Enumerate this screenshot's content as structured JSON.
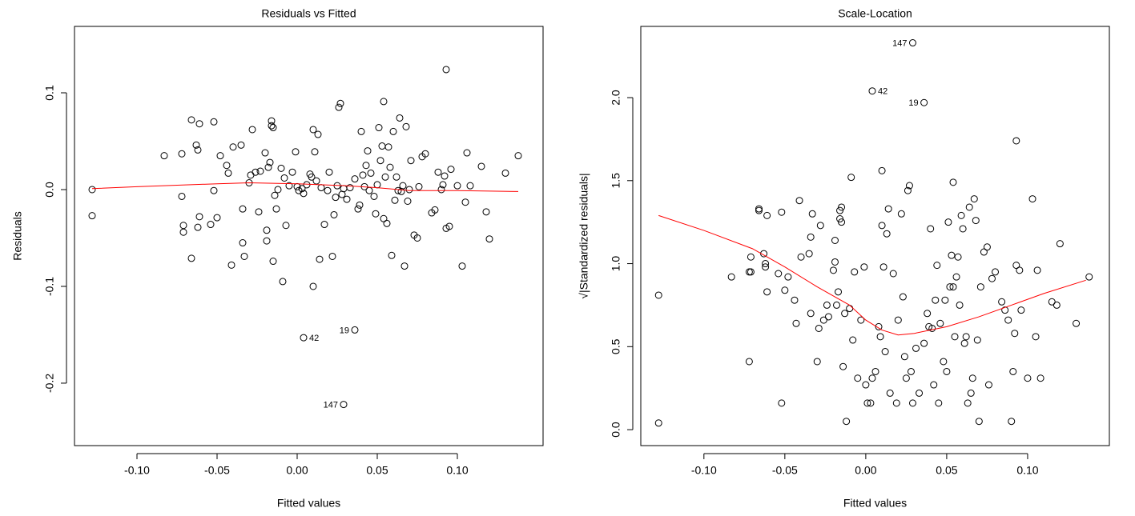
{
  "chart_data": [
    {
      "type": "scatter",
      "title": "Residuals vs Fitted",
      "x_label": "Fitted values",
      "y_label": "Residuals",
      "color": "#000000",
      "xlim": [
        -0.139,
        0.1535
      ],
      "ylim": [
        -0.2645,
        0.1686
      ],
      "xticks": [
        {
          "value": -0.1,
          "label": "-0.10"
        },
        -0.05,
        {
          "value": 0,
          "label": "0.00"
        },
        0.05,
        {
          "value": 0.1,
          "label": "0.10"
        }
      ],
      "yticks": [
        -0.2,
        -0.1,
        {
          "value": 0,
          "label": "0.0"
        },
        0.1
      ],
      "x": [
        -0.128,
        -0.128,
        -0.083,
        -0.072,
        -0.072,
        -0.071,
        -0.071,
        -0.066,
        -0.066,
        -0.063,
        -0.062,
        -0.061,
        -0.061,
        -0.062,
        -0.054,
        -0.052,
        -0.052,
        -0.05,
        -0.048,
        -0.044,
        -0.043,
        -0.041,
        -0.04,
        -0.035,
        -0.034,
        -0.034,
        -0.033,
        -0.03,
        -0.029,
        -0.028,
        -0.026,
        -0.024,
        -0.023,
        -0.02,
        -0.019,
        -0.019,
        -0.018,
        -0.017,
        -0.016,
        -0.016,
        -0.015,
        -0.015,
        -0.014,
        -0.013,
        -0.012,
        -0.01,
        -0.009,
        -0.008,
        -0.007,
        -0.005,
        -0.003,
        -0.001,
        0.0,
        0.001,
        0.003,
        0.004,
        0.006,
        0.008,
        0.009,
        0.01,
        0.01,
        0.011,
        0.012,
        0.013,
        0.014,
        0.015,
        0.017,
        0.019,
        0.02,
        0.022,
        0.023,
        0.024,
        0.025,
        0.026,
        0.027,
        0.028,
        0.029,
        0.031,
        0.033,
        0.004,
        0.036,
        0.029,
        0.036,
        0.038,
        0.039,
        0.04,
        0.041,
        0.042,
        0.043,
        0.044,
        0.045,
        0.046,
        0.048,
        0.049,
        0.05,
        0.051,
        0.052,
        0.053,
        0.054,
        0.054,
        0.055,
        0.056,
        0.057,
        0.058,
        0.059,
        0.06,
        0.061,
        0.062,
        0.063,
        0.064,
        0.065,
        0.066,
        0.067,
        0.068,
        0.069,
        0.07,
        0.071,
        0.073,
        0.075,
        0.076,
        0.078,
        0.08,
        0.084,
        0.086,
        0.088,
        0.09,
        0.091,
        0.092,
        0.093,
        0.093,
        0.095,
        0.096,
        0.1,
        0.103,
        0.105,
        0.106,
        0.108,
        0.115,
        0.118,
        0.12,
        0.13,
        0.138
      ],
      "values": [
        0.0,
        -0.027,
        0.035,
        0.037,
        -0.007,
        -0.037,
        -0.044,
        0.072,
        -0.071,
        0.046,
        0.041,
        0.068,
        -0.028,
        -0.039,
        -0.036,
        0.07,
        -0.001,
        -0.029,
        0.035,
        0.025,
        0.017,
        -0.078,
        0.044,
        0.046,
        -0.02,
        -0.055,
        -0.069,
        0.007,
        0.015,
        0.062,
        0.018,
        -0.023,
        0.019,
        0.038,
        -0.042,
        -0.053,
        0.023,
        0.028,
        0.071,
        0.066,
        -0.074,
        0.064,
        -0.006,
        -0.02,
        0.0,
        0.022,
        -0.095,
        0.012,
        -0.037,
        0.004,
        0.018,
        0.039,
        0.003,
        -0.001,
        0.001,
        -0.004,
        0.005,
        0.016,
        0.013,
        0.062,
        -0.1,
        0.039,
        0.009,
        0.057,
        -0.072,
        0.002,
        -0.036,
        -0.001,
        0.018,
        -0.069,
        -0.026,
        -0.008,
        0.004,
        0.085,
        0.089,
        -0.005,
        0.001,
        -0.01,
        0.002,
        -0.153,
        -0.145,
        -0.222,
        0.011,
        -0.02,
        -0.016,
        0.06,
        0.015,
        0.003,
        0.025,
        0.04,
        -0.001,
        0.017,
        -0.007,
        -0.025,
        0.005,
        0.064,
        0.03,
        0.045,
        0.091,
        -0.03,
        0.013,
        -0.035,
        0.044,
        0.023,
        -0.068,
        0.06,
        -0.011,
        0.013,
        -0.001,
        0.074,
        -0.002,
        0.004,
        -0.079,
        0.065,
        -0.012,
        0.0,
        0.03,
        -0.047,
        -0.05,
        0.003,
        0.034,
        0.037,
        -0.024,
        -0.021,
        0.018,
        0.0,
        0.005,
        0.014,
        -0.04,
        0.124,
        -0.038,
        0.021,
        0.004,
        -0.079,
        -0.013,
        0.038,
        0.004,
        0.024,
        -0.023,
        -0.051,
        0.017,
        0.035
      ],
      "lines": [
        {
          "color": "#ff0000",
          "x": [
            -0.128,
            -0.1,
            -0.05,
            -0.03,
            0.0,
            0.03,
            0.05,
            0.07,
            0.1,
            0.138
          ],
          "values": [
            0.001,
            0.003,
            0.006,
            0.007,
            0.006,
            0.004,
            0.002,
            -0.001,
            -0.001,
            -0.002
          ]
        }
      ],
      "annotations": [
        {
          "text": "147",
          "x": 0.029,
          "y": -0.222,
          "pos": "left"
        },
        {
          "text": "42",
          "x": 0.004,
          "y": -0.153,
          "pos": "right"
        },
        {
          "text": "19",
          "x": 0.036,
          "y": -0.145,
          "pos": "left"
        }
      ]
    },
    {
      "type": "scatter",
      "title": "Scale-Location",
      "x_label": "Fitted values",
      "y_label": "√|Standardized residuals|",
      "color": "#000000",
      "xlim": [
        -0.139,
        0.1505
      ],
      "ylim": [
        -0.096,
        2.429
      ],
      "xticks": [
        {
          "value": -0.1,
          "label": "-0.10"
        },
        -0.05,
        {
          "value": 0,
          "label": "0.00"
        },
        0.05,
        {
          "value": 0.1,
          "label": "0.10"
        }
      ],
      "yticks": [
        {
          "value": 0,
          "label": "0.0"
        },
        0.5,
        {
          "value": 1,
          "label": "1.0"
        },
        1.5,
        {
          "value": 2,
          "label": "2.0"
        }
      ],
      "x": [
        -0.128,
        -0.128,
        -0.083,
        -0.072,
        -0.072,
        -0.071,
        -0.071,
        -0.066,
        -0.066,
        -0.063,
        -0.062,
        -0.061,
        -0.061,
        -0.062,
        -0.054,
        -0.052,
        -0.052,
        -0.05,
        -0.048,
        -0.044,
        -0.043,
        -0.041,
        -0.04,
        -0.035,
        -0.034,
        -0.034,
        -0.033,
        -0.03,
        -0.029,
        -0.028,
        -0.026,
        -0.024,
        -0.023,
        -0.02,
        -0.019,
        -0.019,
        -0.018,
        -0.017,
        -0.016,
        -0.016,
        -0.015,
        -0.015,
        -0.014,
        -0.013,
        -0.012,
        -0.01,
        -0.009,
        -0.008,
        -0.007,
        -0.005,
        -0.003,
        -0.001,
        0.0,
        0.001,
        0.003,
        0.004,
        0.006,
        0.008,
        0.009,
        0.01,
        0.01,
        0.011,
        0.012,
        0.013,
        0.014,
        0.015,
        0.017,
        0.019,
        0.02,
        0.022,
        0.023,
        0.024,
        0.025,
        0.026,
        0.027,
        0.028,
        0.029,
        0.031,
        0.033,
        0.004,
        0.036,
        0.029,
        0.036,
        0.038,
        0.039,
        0.04,
        0.041,
        0.042,
        0.043,
        0.044,
        0.045,
        0.046,
        0.048,
        0.049,
        0.05,
        0.051,
        0.052,
        0.053,
        0.054,
        0.054,
        0.055,
        0.056,
        0.057,
        0.058,
        0.059,
        0.06,
        0.061,
        0.062,
        0.063,
        0.064,
        0.065,
        0.066,
        0.067,
        0.068,
        0.069,
        0.07,
        0.071,
        0.073,
        0.075,
        0.076,
        0.078,
        0.08,
        0.084,
        0.086,
        0.088,
        0.09,
        0.091,
        0.092,
        0.093,
        0.093,
        0.095,
        0.096,
        0.1,
        0.103,
        0.105,
        0.106,
        0.108,
        0.115,
        0.118,
        0.12,
        0.13,
        0.138
      ],
      "values": [
        0.04,
        0.81,
        0.92,
        0.95,
        0.41,
        0.95,
        1.04,
        1.33,
        1.32,
        1.06,
        1.0,
        1.29,
        0.83,
        0.98,
        0.94,
        1.31,
        0.16,
        0.84,
        0.92,
        0.78,
        0.64,
        1.38,
        1.04,
        1.06,
        0.7,
        1.16,
        1.3,
        0.41,
        0.61,
        1.23,
        0.66,
        0.75,
        0.68,
        0.96,
        1.01,
        1.14,
        0.75,
        0.83,
        1.32,
        1.27,
        1.34,
        1.25,
        0.38,
        0.7,
        0.05,
        0.73,
        1.52,
        0.54,
        0.95,
        0.31,
        0.66,
        0.98,
        0.27,
        0.16,
        0.16,
        0.31,
        0.35,
        0.62,
        0.56,
        1.23,
        1.56,
        0.98,
        0.47,
        1.18,
        1.33,
        0.22,
        0.94,
        0.16,
        0.66,
        1.3,
        0.8,
        0.44,
        0.31,
        1.44,
        1.47,
        0.35,
        0.16,
        0.49,
        0.22,
        2.04,
        1.97,
        2.33,
        0.52,
        0.7,
        0.62,
        1.21,
        0.61,
        0.27,
        0.78,
        0.99,
        0.16,
        0.64,
        0.41,
        0.78,
        0.35,
        1.25,
        0.86,
        1.05,
        1.49,
        0.86,
        0.56,
        0.92,
        1.04,
        0.75,
        1.29,
        1.21,
        0.52,
        0.56,
        0.16,
        1.34,
        0.22,
        0.31,
        1.39,
        1.26,
        0.54,
        0.05,
        0.86,
        1.07,
        1.1,
        0.27,
        0.91,
        0.95,
        0.77,
        0.72,
        0.66,
        0.05,
        0.35,
        0.58,
        0.99,
        1.74,
        0.96,
        0.72,
        0.31,
        1.39,
        0.56,
        0.96,
        0.31,
        0.77,
        0.75,
        1.12,
        0.64,
        0.92
      ],
      "lines": [
        {
          "color": "#ff0000",
          "x": [
            -0.128,
            -0.1,
            -0.07,
            -0.05,
            -0.03,
            -0.01,
            0.0,
            0.01,
            0.02,
            0.03,
            0.05,
            0.07,
            0.09,
            0.11,
            0.136
          ],
          "values": [
            1.29,
            1.2,
            1.09,
            0.98,
            0.86,
            0.75,
            0.66,
            0.6,
            0.57,
            0.58,
            0.62,
            0.68,
            0.75,
            0.82,
            0.9
          ]
        }
      ],
      "annotations": [
        {
          "text": "147",
          "x": 0.029,
          "y": 2.33,
          "pos": "left"
        },
        {
          "text": "42",
          "x": 0.004,
          "y": 2.04,
          "pos": "right"
        },
        {
          "text": "19",
          "x": 0.036,
          "y": 1.97,
          "pos": "left"
        }
      ]
    }
  ]
}
